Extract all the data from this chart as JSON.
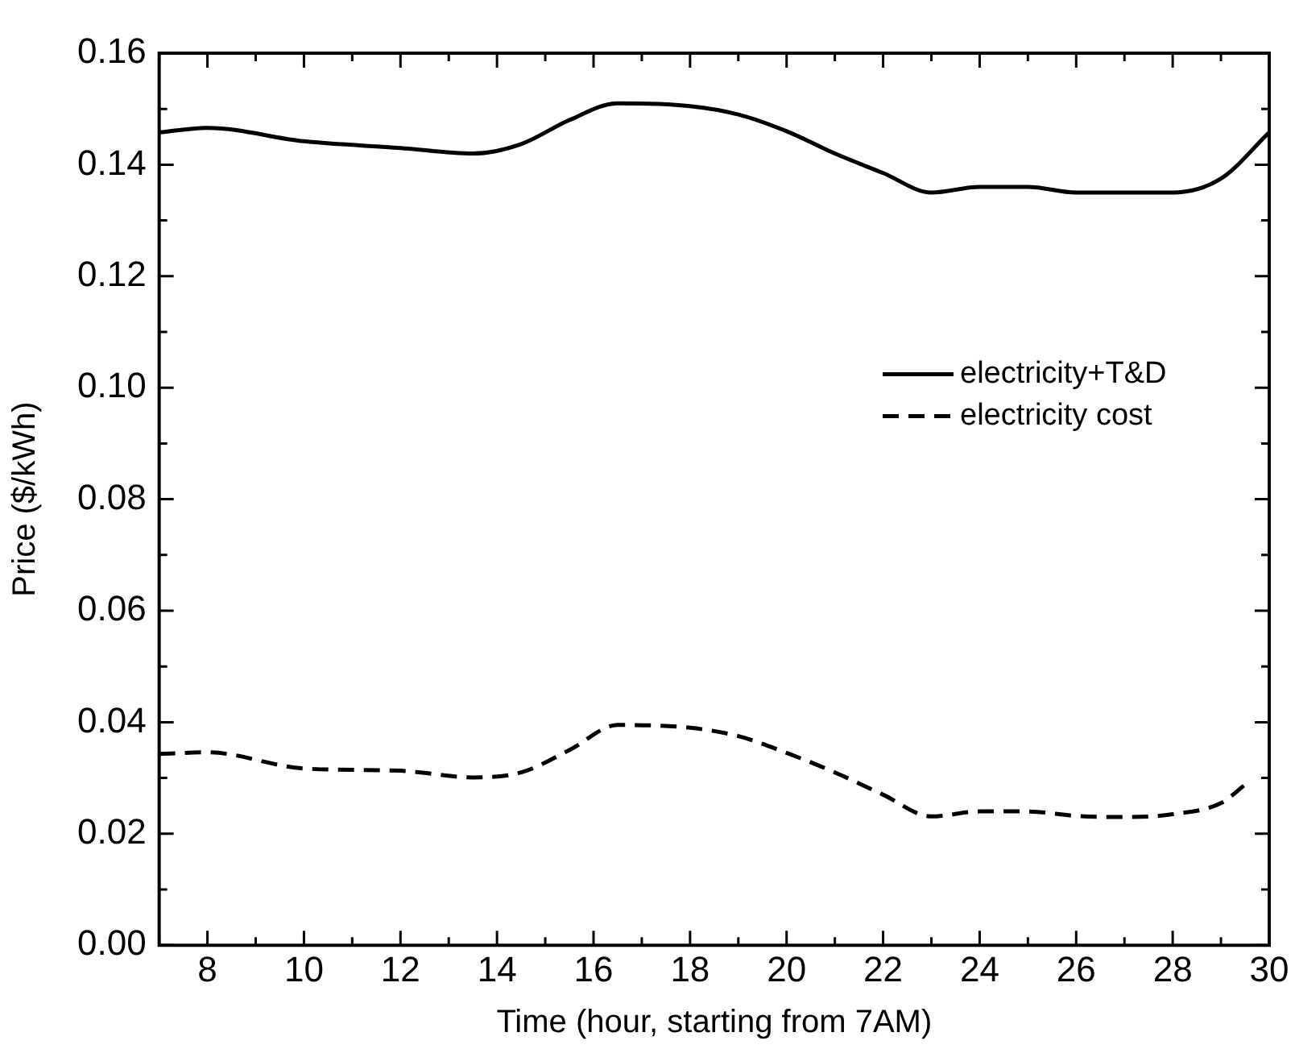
{
  "chart_data": {
    "type": "line",
    "xlabel": "Time (hour, starting from 7AM)",
    "ylabel": "Price ($/kWh)",
    "x": [
      7,
      8,
      10,
      12,
      13.5,
      14.5,
      15.5,
      16.5,
      18,
      19,
      20,
      21,
      22,
      23,
      24,
      25,
      26,
      28,
      29,
      30
    ],
    "xlim": [
      7,
      30
    ],
    "ylim": [
      0,
      0.16
    ],
    "xticks": [
      {
        "value": 7,
        "label": null
      },
      8,
      {
        "value": 9,
        "label": null
      },
      10,
      {
        "value": 11,
        "label": null
      },
      12,
      {
        "value": 13,
        "label": null
      },
      14,
      {
        "value": 15,
        "label": null
      },
      16,
      {
        "value": 17,
        "label": null
      },
      18,
      {
        "value": 19,
        "label": null
      },
      20,
      {
        "value": 21,
        "label": null
      },
      22,
      {
        "value": 23,
        "label": null
      },
      24,
      {
        "value": 25,
        "label": null
      },
      26,
      {
        "value": 27,
        "label": null
      },
      28,
      {
        "value": 29,
        "label": null
      },
      30
    ],
    "yticks": [
      {
        "value": 0,
        "label": "0.00"
      },
      {
        "value": 0.01,
        "label": null
      },
      0.02,
      {
        "value": 0.03,
        "label": null
      },
      0.04,
      {
        "value": 0.05,
        "label": null
      },
      0.06,
      {
        "value": 0.07,
        "label": null
      },
      0.08,
      {
        "value": 0.09,
        "label": null
      },
      {
        "value": 0.1,
        "label": "0.10"
      },
      {
        "value": 0.11,
        "label": null
      },
      0.12,
      {
        "value": 0.13,
        "label": null
      },
      0.14,
      {
        "value": 0.15,
        "label": null
      },
      0.16
    ],
    "grid": false,
    "legend": "right",
    "marker": "none",
    "series": [
      {
        "name": "electricity+T&D",
        "color": "#000000",
        "line_style": "solid",
        "values": [
          0.1458,
          0.1466,
          0.1442,
          0.143,
          0.142,
          0.1437,
          0.148,
          0.151,
          0.1505,
          0.149,
          0.146,
          0.142,
          0.1385,
          0.135,
          0.136,
          0.136,
          0.135,
          0.135,
          0.1375,
          0.1458
        ]
      },
      {
        "name": "electricity cost",
        "color": "#000000",
        "line_style": "dashed",
        "x": [
          7,
          8,
          10,
          12,
          13.5,
          14.5,
          15.5,
          16.5,
          18,
          19,
          20,
          21,
          22,
          23,
          24,
          25,
          26,
          27,
          28,
          29,
          29.5
        ],
        "values": [
          0.0343,
          0.0346,
          0.0317,
          0.0313,
          0.0301,
          0.031,
          0.035,
          0.0395,
          0.039,
          0.0375,
          0.0345,
          0.031,
          0.027,
          0.0231,
          0.024,
          0.024,
          0.0232,
          0.023,
          0.0235,
          0.0255,
          0.0288
        ]
      }
    ]
  }
}
